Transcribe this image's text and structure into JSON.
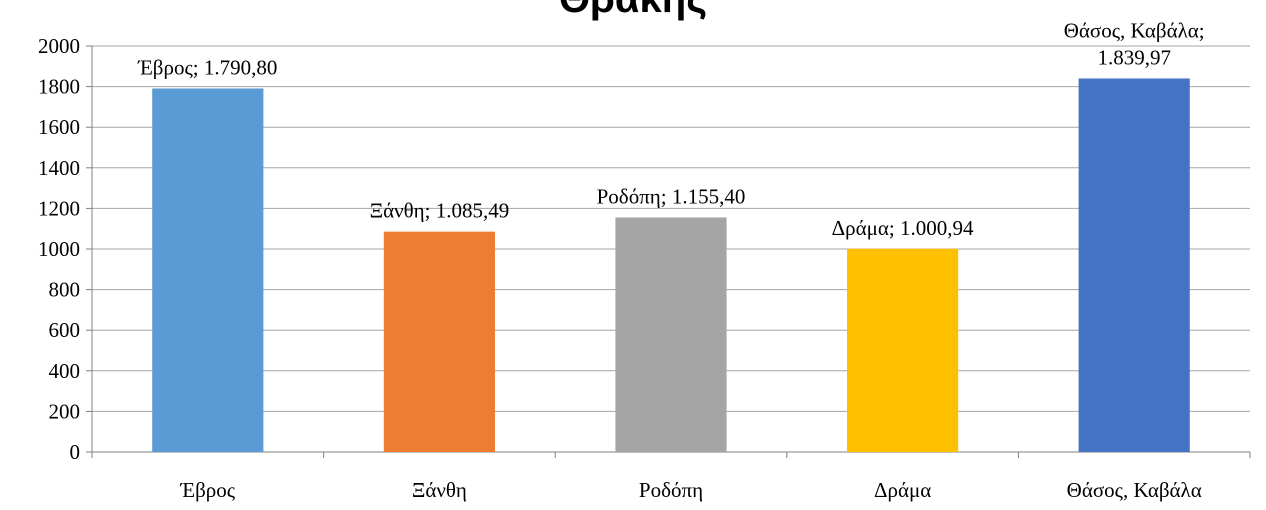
{
  "chart_data": {
    "type": "bar",
    "title": "Θράκης",
    "categories": [
      "Έβρος",
      "Ξάνθη",
      "Ροδόπη",
      "Δράμα",
      "Θάσος, Καβάλα"
    ],
    "values": [
      1790.8,
      1085.49,
      1155.4,
      1000.94,
      1839.97
    ],
    "data_labels": [
      [
        "Έβρος; 1.790,80"
      ],
      [
        "Ξάνθη; 1.085,49"
      ],
      [
        "Ροδόπη; 1.155,40"
      ],
      [
        "Δράμα; 1.000,94"
      ],
      [
        "Θάσος, Καβάλα;",
        "1.839,97"
      ]
    ],
    "colors": [
      "#5B9BD5",
      "#ED7D31",
      "#A5A5A5",
      "#FFC000",
      "#4472C4"
    ],
    "xlabel": "",
    "ylabel": "",
    "ylim": [
      0,
      2000
    ],
    "yticks": [
      "0",
      "200",
      "400",
      "600",
      "800",
      "1000",
      "1200",
      "1400",
      "1600",
      "1800",
      "2000"
    ],
    "grid": true,
    "legend": "none"
  }
}
